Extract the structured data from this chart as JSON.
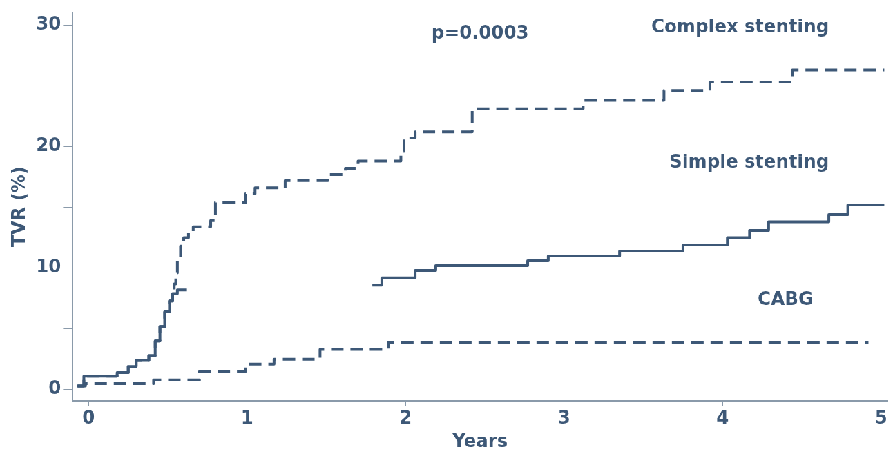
{
  "chart_data": {
    "type": "step",
    "xlabel": "Years",
    "ylabel": "TVR (%)",
    "annotations": [
      "p=0.0003"
    ],
    "xlim": [
      -0.1,
      5.04
    ],
    "xticks": [
      0,
      1,
      2,
      3,
      4,
      5
    ],
    "ylim": [
      -0.9,
      31
    ],
    "yticks": [
      0,
      {
        "value": 5,
        "label": null
      },
      10,
      {
        "value": 15,
        "label": null
      },
      20,
      {
        "value": 25,
        "label": null
      },
      30
    ],
    "grid": false,
    "legend": false,
    "marker": "none",
    "series": [
      {
        "name": "Complex stenting",
        "color": "#3d5877",
        "line_style": "dashed",
        "x": [
          -0.07,
          -0.03,
          0.18,
          0.25,
          0.3,
          0.38,
          0.42,
          0.45,
          0.48,
          0.51,
          0.53,
          0.54,
          0.55,
          0.56,
          0.58,
          0.6,
          0.63,
          0.66,
          0.77,
          0.8,
          0.99,
          1.05,
          1.24,
          1.51,
          1.62,
          1.7,
          1.97,
          1.99,
          2.06,
          2.42,
          3.12,
          3.63,
          3.92,
          4.44,
          5.02
        ],
        "values": [
          0.3,
          1.1,
          1.4,
          1.9,
          2.4,
          2.8,
          4,
          5.2,
          6.4,
          7.3,
          7.9,
          8.7,
          9.6,
          10.7,
          11.8,
          12.5,
          12.9,
          13.4,
          13.9,
          15.4,
          16.1,
          16.6,
          17.2,
          17.7,
          18.2,
          18.8,
          19.6,
          20.7,
          21.2,
          23.1,
          23.8,
          24.6,
          25.3,
          26.3,
          26.3
        ]
      },
      {
        "name": "Simple stenting",
        "color": "#3d5877",
        "line_style": "solid",
        "x": [
          -0.07,
          -0.03,
          0.18,
          0.25,
          0.3,
          0.38,
          0.42,
          0.45,
          0.48,
          0.51,
          0.53,
          0.56,
          0.62,
          1.2,
          1.79,
          1.85,
          2.06,
          2.19,
          2.77,
          2.9,
          3.35,
          3.75,
          4.03,
          4.17,
          4.29,
          4.67,
          4.79,
          5.02
        ],
        "values": [
          0.3,
          1.1,
          1.4,
          1.9,
          2.4,
          2.8,
          4,
          5.2,
          6.4,
          7.3,
          7.9,
          8.2,
          8.2,
          null,
          8.6,
          9.2,
          9.8,
          10.2,
          10.6,
          11.0,
          11.4,
          11.9,
          12.5,
          13.1,
          13.8,
          14.4,
          15.2,
          15.2
        ]
      },
      {
        "name": "CABG",
        "color": "#3d5877",
        "line_style": "dashed",
        "x": [
          -0.07,
          -0.02,
          0.41,
          0.7,
          0.99,
          1.17,
          1.46,
          1.89,
          4.92
        ],
        "values": [
          0.3,
          0.5,
          0.8,
          1.5,
          2.1,
          2.5,
          3.3,
          3.9,
          3.9
        ]
      }
    ]
  }
}
